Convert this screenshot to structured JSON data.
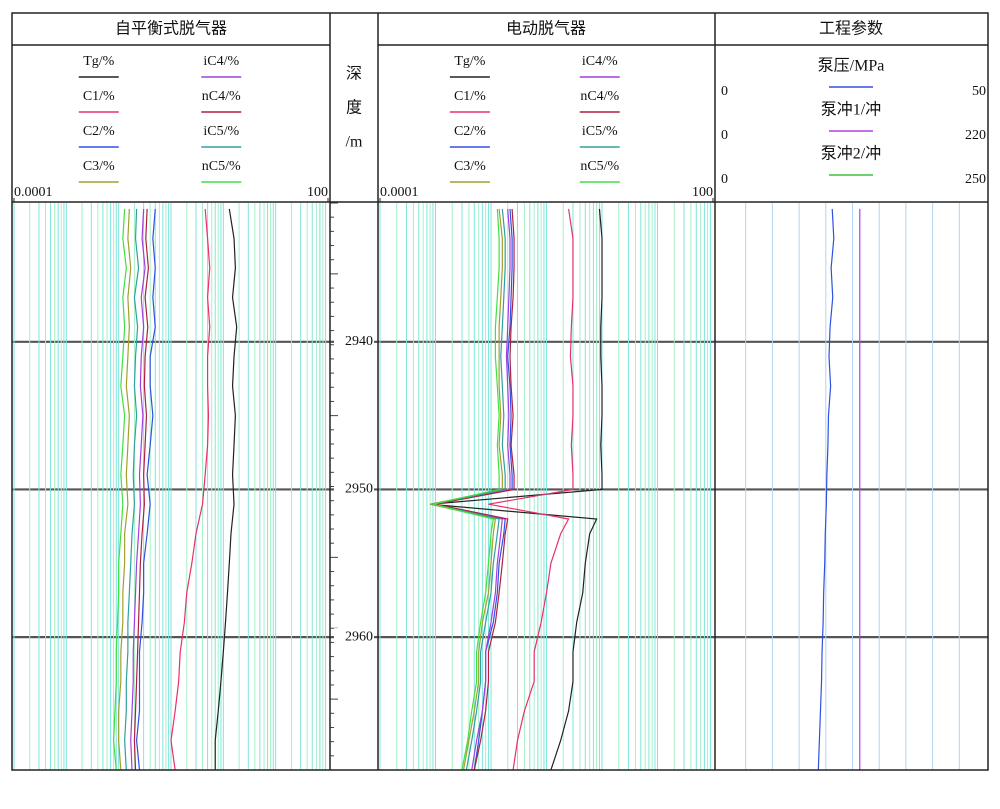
{
  "depth_track": {
    "label_lines": [
      "深",
      "度",
      "/m"
    ],
    "ylim": [
      2930.6,
      2969
    ],
    "yticks": [
      2940,
      2950,
      2960
    ]
  },
  "chart_data": [
    {
      "type": "log-track",
      "title": "自平衡式脱气器",
      "log_x": true,
      "xlim": [
        0.0001,
        100
      ],
      "xticks": [
        0.0001,
        100
      ],
      "depth": [
        2931,
        2933,
        2935,
        2937,
        2939,
        2941,
        2943,
        2945,
        2947,
        2949,
        2951,
        2953,
        2955,
        2957,
        2959,
        2961,
        2963,
        2965,
        2967,
        2969
      ],
      "series": [
        {
          "name": "Tg/%",
          "color": "#222222",
          "values": [
            1.3,
            1.6,
            1.7,
            1.5,
            1.8,
            1.6,
            1.5,
            1.7,
            1.6,
            1.5,
            1.6,
            1.4,
            1.3,
            1.2,
            1.1,
            1.0,
            0.9,
            0.8,
            0.7,
            0.7
          ]
        },
        {
          "name": "C1/%",
          "color": "#e8306a",
          "values": [
            0.45,
            0.5,
            0.55,
            0.5,
            0.55,
            0.5,
            0.5,
            0.52,
            0.5,
            0.45,
            0.4,
            0.3,
            0.25,
            0.2,
            0.18,
            0.15,
            0.14,
            0.12,
            0.1,
            0.12
          ]
        },
        {
          "name": "C2/%",
          "color": "#3050e0",
          "values": [
            0.05,
            0.045,
            0.05,
            0.045,
            0.05,
            0.04,
            0.04,
            0.045,
            0.04,
            0.035,
            0.04,
            0.035,
            0.03,
            0.03,
            0.028,
            0.025,
            0.025,
            0.025,
            0.022,
            0.025
          ]
        },
        {
          "name": "C3/%",
          "color": "#a0a030",
          "values": [
            0.016,
            0.015,
            0.017,
            0.015,
            0.016,
            0.015,
            0.014,
            0.016,
            0.015,
            0.014,
            0.015,
            0.013,
            0.013,
            0.012,
            0.012,
            0.011,
            0.011,
            0.01,
            0.01,
            0.011
          ]
        },
        {
          "name": "iC4/%",
          "color": "#a040e0",
          "values": [
            0.03,
            0.028,
            0.032,
            0.027,
            0.03,
            0.027,
            0.026,
            0.029,
            0.027,
            0.025,
            0.026,
            0.024,
            0.022,
            0.021,
            0.02,
            0.019,
            0.019,
            0.018,
            0.017,
            0.018
          ]
        },
        {
          "name": "nC4/%",
          "color": "#b02040",
          "values": [
            0.035,
            0.033,
            0.037,
            0.032,
            0.036,
            0.032,
            0.031,
            0.034,
            0.032,
            0.03,
            0.031,
            0.028,
            0.026,
            0.025,
            0.024,
            0.023,
            0.022,
            0.021,
            0.02,
            0.021
          ]
        },
        {
          "name": "iC5/%",
          "color": "#30a0a0",
          "values": [
            0.022,
            0.021,
            0.024,
            0.02,
            0.023,
            0.021,
            0.02,
            0.022,
            0.02,
            0.019,
            0.02,
            0.018,
            0.017,
            0.016,
            0.015,
            0.015,
            0.014,
            0.014,
            0.013,
            0.014
          ]
        },
        {
          "name": "nC5/%",
          "color": "#40e040",
          "values": [
            0.013,
            0.012,
            0.014,
            0.012,
            0.013,
            0.012,
            0.011,
            0.013,
            0.012,
            0.011,
            0.012,
            0.011,
            0.01,
            0.01,
            0.0095,
            0.009,
            0.009,
            0.0085,
            0.008,
            0.009
          ]
        }
      ]
    },
    {
      "type": "log-track",
      "title": "电动脱气器",
      "log_x": true,
      "xlim": [
        0.0001,
        100
      ],
      "xticks": [
        0.0001,
        100
      ],
      "depth": [
        2931,
        2933,
        2935,
        2937,
        2939,
        2941,
        2943,
        2945,
        2947,
        2949,
        2950,
        2951,
        2952,
        2953,
        2955,
        2957,
        2959,
        2961,
        2963,
        2965,
        2967,
        2969
      ],
      "series": [
        {
          "name": "Tg/%",
          "color": "#222222",
          "values": [
            0.9,
            1.0,
            1.0,
            1.0,
            0.95,
            0.95,
            1.0,
            1.0,
            0.95,
            1.0,
            1.0,
            0.0008,
            0.8,
            0.6,
            0.5,
            0.45,
            0.35,
            0.3,
            0.3,
            0.25,
            0.18,
            0.12
          ]
        },
        {
          "name": "C1/%",
          "color": "#e8306a",
          "values": [
            0.25,
            0.3,
            0.3,
            0.3,
            0.28,
            0.27,
            0.3,
            0.3,
            0.28,
            0.3,
            0.3,
            0.009,
            0.25,
            0.18,
            0.12,
            0.1,
            0.08,
            0.06,
            0.06,
            0.04,
            0.03,
            0.025
          ]
        },
        {
          "name": "C2/%",
          "color": "#3050e0",
          "values": [
            0.022,
            0.024,
            0.024,
            0.023,
            0.022,
            0.02,
            0.022,
            0.023,
            0.022,
            0.024,
            0.024,
            0.0008,
            0.018,
            0.017,
            0.014,
            0.013,
            0.011,
            0.008,
            0.008,
            0.007,
            0.006,
            0.005
          ]
        },
        {
          "name": "C3/%",
          "color": "#a0a030",
          "values": [
            0.014,
            0.016,
            0.016,
            0.015,
            0.014,
            0.014,
            0.014,
            0.015,
            0.014,
            0.016,
            0.016,
            0.0008,
            0.012,
            0.011,
            0.01,
            0.009,
            0.007,
            0.006,
            0.006,
            0.005,
            0.004,
            0.0032
          ]
        },
        {
          "name": "iC4/%",
          "color": "#a040e0",
          "values": [
            0.02,
            0.022,
            0.022,
            0.021,
            0.02,
            0.019,
            0.02,
            0.021,
            0.02,
            0.022,
            0.022,
            0.0009,
            0.016,
            0.015,
            0.013,
            0.012,
            0.01,
            0.008,
            0.008,
            0.007,
            0.0055,
            0.0045
          ]
        },
        {
          "name": "nC4/%",
          "color": "#b02040",
          "values": [
            0.024,
            0.026,
            0.026,
            0.025,
            0.023,
            0.022,
            0.023,
            0.025,
            0.023,
            0.026,
            0.026,
            0.001,
            0.02,
            0.018,
            0.016,
            0.014,
            0.012,
            0.009,
            0.009,
            0.008,
            0.0065,
            0.005
          ]
        },
        {
          "name": "iC5/%",
          "color": "#30a0a0",
          "values": [
            0.016,
            0.018,
            0.018,
            0.017,
            0.016,
            0.015,
            0.016,
            0.017,
            0.016,
            0.018,
            0.018,
            0.0009,
            0.014,
            0.013,
            0.011,
            0.01,
            0.008,
            0.0065,
            0.0065,
            0.0055,
            0.0045,
            0.0036
          ]
        },
        {
          "name": "nC5/%",
          "color": "#40e040",
          "values": [
            0.013,
            0.014,
            0.014,
            0.013,
            0.012,
            0.012,
            0.013,
            0.014,
            0.013,
            0.014,
            0.014,
            0.0009,
            0.011,
            0.01,
            0.009,
            0.008,
            0.0065,
            0.0055,
            0.0055,
            0.0045,
            0.0038,
            0.003
          ]
        }
      ]
    },
    {
      "type": "linear-track",
      "title": "工程参数",
      "depth": [
        2931,
        2933,
        2935,
        2937,
        2939,
        2941,
        2943,
        2945,
        2947,
        2949,
        2951,
        2953,
        2955,
        2957,
        2959,
        2961,
        2963,
        2965,
        2967,
        2969
      ],
      "series": [
        {
          "name": "泵压/MPa",
          "color": "#3050e0",
          "xlim": [
            0,
            50
          ],
          "xticks": [
            0,
            50
          ],
          "values": [
            21.2,
            21.5,
            21,
            21.3,
            20.8,
            20.6,
            20.9,
            20.5,
            20.4,
            20.2,
            20.1,
            19.9,
            19.8,
            19.6,
            19.5,
            19.3,
            19.2,
            19,
            18.8,
            18.6
          ]
        },
        {
          "name": "泵冲1/冲",
          "color": "#b040e0",
          "xlim": [
            0,
            220
          ],
          "xticks": [
            0,
            220
          ],
          "values": [
            116,
            116,
            116,
            116,
            116,
            116,
            116,
            116,
            116,
            116,
            116,
            116,
            116,
            116,
            116,
            116,
            116,
            116,
            116,
            116
          ]
        },
        {
          "name": "泵冲2/冲",
          "color": "#40c040",
          "xlim": [
            0,
            250
          ],
          "xticks": [
            0,
            250
          ],
          "values": [
            null,
            null,
            null,
            null,
            null,
            null,
            null,
            null,
            null,
            null,
            null,
            null,
            null,
            null,
            null,
            null,
            null,
            null,
            null,
            null
          ]
        }
      ]
    }
  ]
}
